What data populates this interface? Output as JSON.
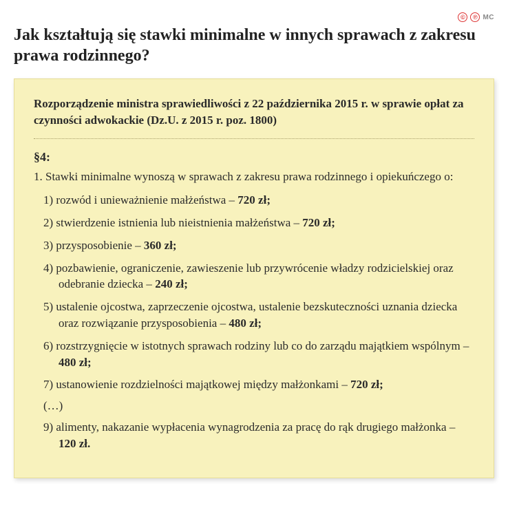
{
  "meta": {
    "badges": {
      "c": "©",
      "p": "℗"
    },
    "source": "MC"
  },
  "title": "Jak kształtują się stawki minimalne w innych sprawach z zakresu prawa rodzinnego?",
  "card": {
    "regulation": "Rozporządzenie ministra sprawiedliwości z 22 października 2015 r. w sprawie opłat za czynności adwokackie (Dz.U. z 2015 r. poz. 1800)",
    "section": "§4:",
    "intro": "1. Stawki minimalne wynoszą w sprawach z zakresu prawa rodzinnego i opiekuńczego o:",
    "items": [
      {
        "num": "1)",
        "text": "rozwód i unieważnienie małżeństwa –",
        "amount": "720 zł;"
      },
      {
        "num": "2)",
        "text": "stwierdzenie istnienia lub nieistnienia małżeństwa –",
        "amount": "720 zł;"
      },
      {
        "num": "3)",
        "text": "przysposobienie –",
        "amount": "360 zł;"
      },
      {
        "num": "4)",
        "text": "pozbawienie, ograniczenie, zawieszenie lub przywrócenie władzy rodzicielskiej oraz odebranie dziecka –",
        "amount": "240 zł;"
      },
      {
        "num": "5)",
        "text": "ustalenie ojcostwa, zaprzeczenie ojcostwa, ustalenie bezskuteczności uznania dziecka oraz rozwiązanie przysposobienia –",
        "amount": "480 zł;"
      },
      {
        "num": "6)",
        "text": "rozstrzygnięcie w istotnych sprawach rodziny lub co do zarządu majątkiem wspólnym –",
        "amount": "480 zł;"
      },
      {
        "num": "7)",
        "text": "ustanowienie rozdzielności majątkowej między małżonkami –",
        "amount": "720 zł;"
      }
    ],
    "ellipsis": "(…)",
    "last": {
      "num": "9)",
      "text": "alimenty, nakazanie wypłacenia wynagrodzenia za pracę do rąk drugiego małżonka –",
      "amount": "120 zł."
    }
  },
  "colors": {
    "card_bg": "#f8f2bd",
    "card_border": "#e6dd9a",
    "text": "#2a2a2a",
    "badge": "#d33"
  }
}
